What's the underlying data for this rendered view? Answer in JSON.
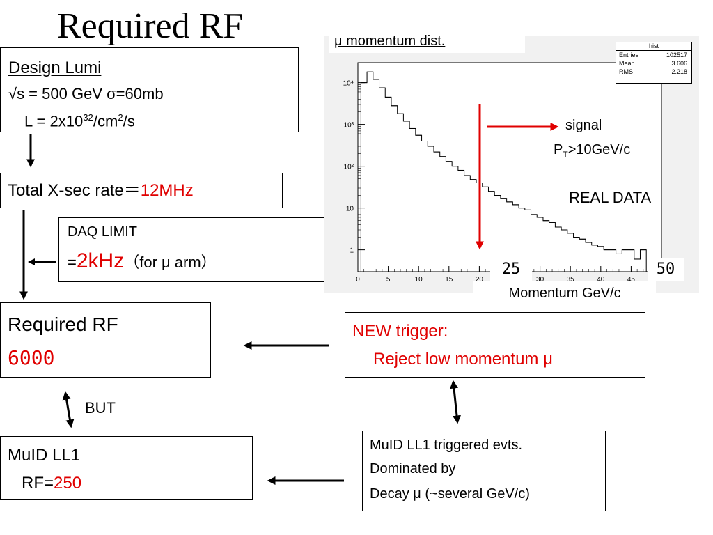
{
  "slide_title": "Required RF",
  "design_box": {
    "heading": "Design Lumi",
    "energy_line": "√s = 500 GeV  σ=60mb",
    "lumi_prefix": "L = 2x10",
    "lumi_exp1": "32",
    "lumi_mid": "/cm",
    "lumi_exp2": "2",
    "lumi_suffix": "/s"
  },
  "xsec_box": {
    "label": "Total X-sec rate＝",
    "value": "12MHz"
  },
  "daq_box": {
    "line1": "DAQ LIMIT",
    "prefix": "=",
    "value": "2kHz",
    "suffix": "（for μ arm）"
  },
  "required_box": {
    "label": "Required RF",
    "value": "6000"
  },
  "but_label": "BUT",
  "muid_box": {
    "label": "MuID LL1",
    "rf_prefix": "RF=",
    "rf_value": "250"
  },
  "new_trigger_box": {
    "line1": "NEW trigger:",
    "line2": "Reject low momentum μ"
  },
  "triggered_box": {
    "line1": "MuID LL1 triggered evts.",
    "line2": "Dominated by",
    "line3": "Decay μ (~several GeV/c)"
  },
  "plot": {
    "caption": "μ momentum dist.",
    "stats": {
      "title": "hist",
      "rows": [
        {
          "key": "Entries",
          "value": "102517"
        },
        {
          "key": "Mean",
          "value": "3.606"
        },
        {
          "key": "RMS",
          "value": "2.218"
        }
      ]
    },
    "signal_label": "signal",
    "pt_prefix": "P",
    "pt_sub": "T",
    "pt_suffix": ">10GeV/c",
    "real_data_label": "REAL DATA",
    "marker_25": "25",
    "marker_50": "50",
    "xlabel": "Momentum GeV/c"
  },
  "chart_data": {
    "type": "line",
    "title": "μ momentum dist.",
    "xlabel": "Momentum GeV/c",
    "ylabel": "",
    "xlim": [
      0,
      50
    ],
    "ylim": [
      0.3,
      30000
    ],
    "y_scale": "log",
    "x_ticks": [
      "0",
      "5",
      "10",
      "15",
      "20",
      "25",
      "30",
      "35",
      "40",
      "45",
      "50"
    ],
    "y_ticks": [
      "1",
      "10",
      "10²",
      "10³",
      "10⁴"
    ],
    "grid": false,
    "step": 1,
    "x": [
      1,
      2,
      3,
      4,
      5,
      6,
      7,
      8,
      9,
      10,
      11,
      12,
      13,
      14,
      15,
      16,
      17,
      18,
      19,
      20,
      21,
      22,
      23,
      24,
      25,
      26,
      27,
      28,
      29,
      30,
      31,
      32,
      33,
      34,
      35,
      36,
      37,
      38,
      39,
      40,
      41,
      42,
      43,
      44,
      45,
      46,
      47,
      48,
      49
    ],
    "values": [
      10000,
      18000,
      12000,
      7500,
      4500,
      2800,
      1800,
      1200,
      800,
      550,
      400,
      300,
      220,
      170,
      130,
      100,
      80,
      60,
      48,
      40,
      32,
      25,
      20,
      17,
      14,
      12,
      10,
      9,
      7,
      6,
      5,
      4.5,
      3.5,
      3,
      2.5,
      2,
      1.8,
      1.5,
      1.3,
      1.2,
      1,
      1,
      0.8,
      1,
      1,
      0.6,
      1,
      0,
      0
    ],
    "annotations": [
      {
        "text": "signal",
        "x": 21
      },
      {
        "text": "P_T>10GeV/c"
      },
      {
        "text": "REAL DATA"
      }
    ]
  }
}
